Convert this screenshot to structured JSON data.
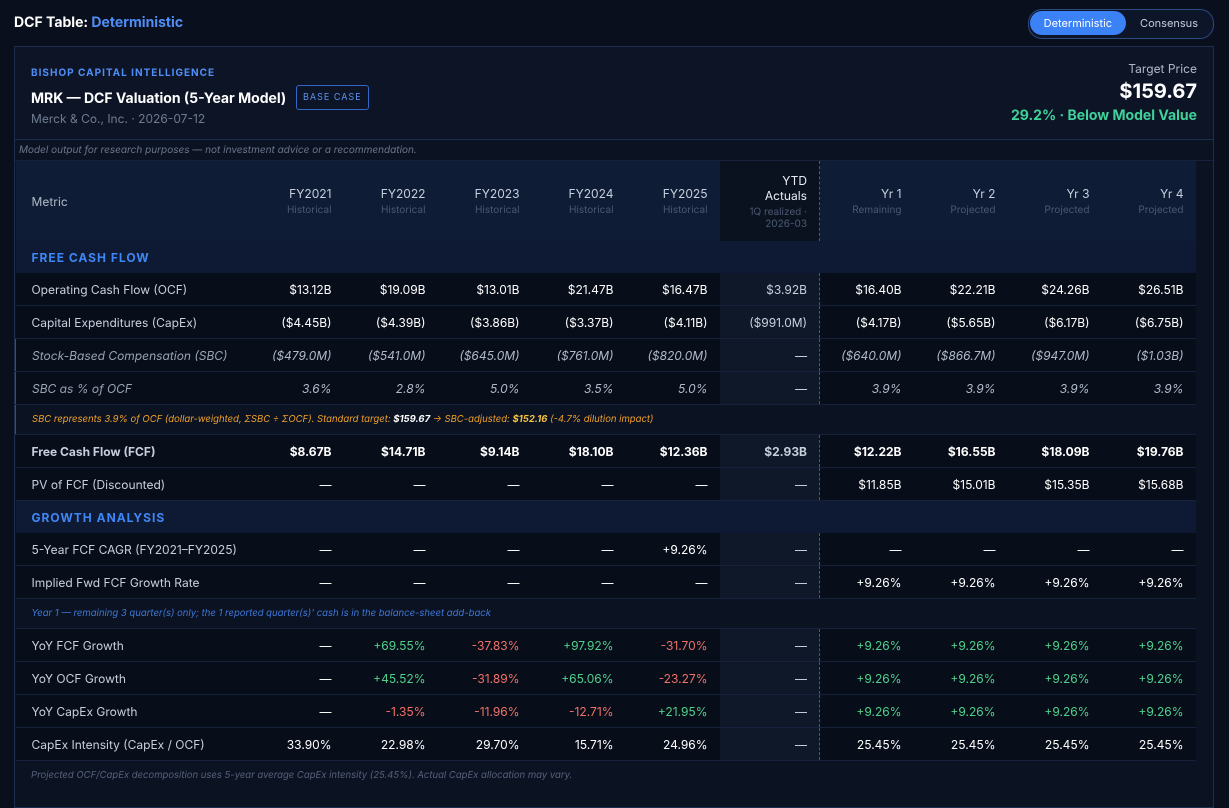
{
  "header": {
    "title": "DCF Table:",
    "mode": "Deterministic",
    "toggle": [
      "Deterministic",
      "Consensus"
    ]
  },
  "card": {
    "brand": "BISHOP CAPITAL INTELLIGENCE",
    "heading": "MRK — DCF Valuation (5-Year Model)",
    "badge": "BASE CASE",
    "subtitle": "Merck & Co., Inc. · 2026-07-12",
    "target_label": "Target Price",
    "target_value": "$159.67",
    "target_note": "29.2% · Below Model Value"
  },
  "disclaimer": "Model output for research purposes — not investment advice or a recommendation.",
  "table": {
    "metric_header": "Metric",
    "columns": [
      {
        "label": "FY2021",
        "sub": "Historical"
      },
      {
        "label": "FY2022",
        "sub": "Historical"
      },
      {
        "label": "FY2023",
        "sub": "Historical"
      },
      {
        "label": "FY2024",
        "sub": "Historical"
      },
      {
        "label": "FY2025",
        "sub": "Historical"
      },
      {
        "label": "YTD Actuals",
        "sub": "1Q realized · 2026-03"
      },
      {
        "label": "Yr 1",
        "sub": "Remaining"
      },
      {
        "label": "Yr 2",
        "sub": "Projected"
      },
      {
        "label": "Yr 3",
        "sub": "Projected"
      },
      {
        "label": "Yr 4",
        "sub": "Projected"
      }
    ],
    "rows": [
      {
        "section": "FREE CASH FLOW"
      },
      {
        "label": "Operating Cash Flow (OCF)",
        "values": [
          "$13.12B",
          "$19.09B",
          "$13.01B",
          "$21.47B",
          "$16.47B",
          "$3.92B",
          "$16.40B",
          "$22.21B",
          "$24.26B",
          "$26.51B"
        ]
      },
      {
        "label": "Capital Expenditures (CapEx)",
        "values": [
          "($4.45B)",
          "($4.39B)",
          "($3.86B)",
          "($3.37B)",
          "($4.11B)",
          "($991.0M)",
          "($4.17B)",
          "($5.65B)",
          "($6.17B)",
          "($6.75B)"
        ]
      },
      {
        "label": "Stock-Based Compensation (SBC)",
        "values": [
          "($479.0M)",
          "($541.0M)",
          "($645.0M)",
          "($761.0M)",
          "($820.0M)",
          "—",
          "($640.0M)",
          "($866.7M)",
          "($947.0M)",
          "($1.03B)"
        ]
      },
      {
        "label": "SBC as % of OCF",
        "values": [
          "3.6%",
          "2.8%",
          "5.0%",
          "3.5%",
          "5.0%",
          "—",
          "3.9%",
          "3.9%",
          "3.9%",
          "3.9%"
        ]
      },
      {
        "note": [
          "SBC represents 3.9% of OCF (dollar-weighted, ΣSBC ÷ ΣOCF). Standard target: ",
          "$159.67",
          " → SBC-adjusted: ",
          "$152.16",
          " (-4.7% dilution impact)"
        ]
      },
      {
        "label": "Free Cash Flow (FCF)",
        "values": [
          "$8.67B",
          "$14.71B",
          "$9.14B",
          "$18.10B",
          "$12.36B",
          "$2.93B",
          "$12.22B",
          "$16.55B",
          "$18.09B",
          "$19.76B"
        ]
      },
      {
        "label": "PV of FCF (Discounted)",
        "values": [
          "—",
          "—",
          "—",
          "—",
          "—",
          "—",
          "$11.85B",
          "$15.01B",
          "$15.35B",
          "$15.68B"
        ]
      },
      {
        "section": "GROWTH ANALYSIS"
      },
      {
        "label": "5-Year FCF CAGR (FY2021–FY2025)",
        "values": [
          "—",
          "—",
          "—",
          "—",
          "+9.26%",
          "—",
          "—",
          "—",
          "—",
          "—"
        ]
      },
      {
        "label": "Implied Fwd FCF Growth Rate",
        "values": [
          "—",
          "—",
          "—",
          "—",
          "—",
          "—",
          "+9.26%",
          "+9.26%",
          "+9.26%",
          "+9.26%"
        ]
      },
      {
        "note": [
          "Year 1 — remaining 3 quarter(s) only; the 1 reported quarter(s)' cash is in the balance-sheet add-back"
        ]
      },
      {
        "label": "YoY FCF Growth",
        "values": [
          "—",
          "+69.55%",
          "-37.83%",
          "+97.92%",
          "-31.70%",
          "—",
          "+9.26%",
          "+9.26%",
          "+9.26%",
          "+9.26%"
        ]
      },
      {
        "label": "YoY OCF Growth",
        "values": [
          "—",
          "+45.52%",
          "-31.89%",
          "+65.06%",
          "-23.27%",
          "—",
          "+9.26%",
          "+9.26%",
          "+9.26%",
          "+9.26%"
        ]
      },
      {
        "label": "YoY CapEx Growth",
        "values": [
          "—",
          "-1.35%",
          "-11.96%",
          "-12.71%",
          "+21.95%",
          "—",
          "+9.26%",
          "+9.26%",
          "+9.26%",
          "+9.26%"
        ]
      },
      {
        "label": "CapEx Intensity (CapEx / OCF)",
        "values": [
          "33.90%",
          "22.98%",
          "29.70%",
          "15.71%",
          "24.96%",
          "—",
          "25.45%",
          "25.45%",
          "25.45%",
          "25.45%"
        ]
      }
    ]
  },
  "footnote": "Projected OCF/CapEx decomposition uses 5-year average CapEx intensity (25.45%). Actual CapEx allocation may vary."
}
